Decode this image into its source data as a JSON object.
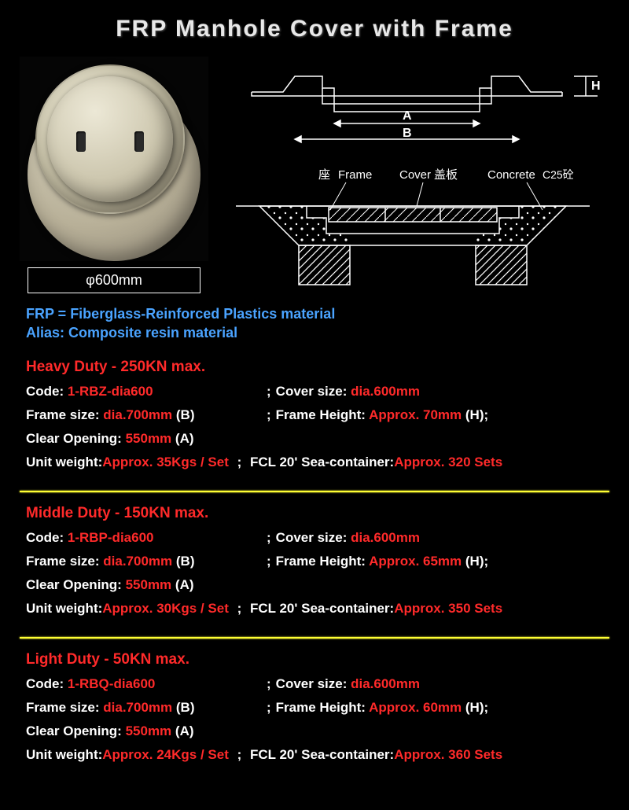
{
  "title": "FRP Manhole Cover with Frame",
  "diameter_label": "φ600mm",
  "diagram": {
    "top_labels": {
      "H": "H",
      "A": "A",
      "B": "B"
    },
    "section_labels": {
      "frame_cn": "座",
      "frame_en": "Frame",
      "cover_en": "Cover",
      "cover_cn": "盖板",
      "concrete_en": "Concrete",
      "concrete_cn": "C25砼"
    },
    "colors": {
      "stroke": "#ffffff",
      "hatch": "#ffffff",
      "bg": "#000000"
    }
  },
  "material": {
    "line1": "FRP = Fiberglass-Reinforced Plastics material",
    "line2": "Alias: Composite resin material"
  },
  "divider_color": "#ffff33",
  "sections": [
    {
      "title": "Heavy Duty - 250KN max.",
      "code": {
        "label": "Code: ",
        "value": "1-RBZ-dia600"
      },
      "cover_size": {
        "label": "Cover size: ",
        "value": "dia.600mm"
      },
      "frame_size": {
        "label": "Frame size: ",
        "value": "dia.700mm",
        "suffix": " (B)"
      },
      "frame_height": {
        "label": "Frame Height: ",
        "value": "Approx. 70mm",
        "suffix": " (H);"
      },
      "clear_opening": {
        "label": "Clear Opening: ",
        "value": "550mm",
        "suffix": " (A)"
      },
      "unit_weight": {
        "label": "Unit weight: ",
        "value": "Approx. 35Kgs / Set"
      },
      "fcl": {
        "label": "FCL 20' Sea-container: ",
        "value": "Approx. 320 Sets"
      }
    },
    {
      "title": "Middle Duty - 150KN max.",
      "code": {
        "label": "Code: ",
        "value": "1-RBP-dia600"
      },
      "cover_size": {
        "label": "Cover size: ",
        "value": "dia.600mm"
      },
      "frame_size": {
        "label": "Frame size: ",
        "value": "dia.700mm",
        "suffix": " (B)"
      },
      "frame_height": {
        "label": "Frame Height: ",
        "value": "Approx. 65mm",
        "suffix": " (H);"
      },
      "clear_opening": {
        "label": "Clear Opening: ",
        "value": "550mm",
        "suffix": " (A)"
      },
      "unit_weight": {
        "label": "Unit weight: ",
        "value": "Approx. 30Kgs / Set"
      },
      "fcl": {
        "label": "FCL 20' Sea-container: ",
        "value": "Approx. 350 Sets"
      }
    },
    {
      "title": "Light Duty - 50KN max.",
      "code": {
        "label": "Code: ",
        "value": "1-RBQ-dia600"
      },
      "cover_size": {
        "label": "Cover size: ",
        "value": "dia.600mm"
      },
      "frame_size": {
        "label": "Frame size: ",
        "value": "dia.700mm",
        "suffix": " (B)"
      },
      "frame_height": {
        "label": "Frame Height: ",
        "value": "Approx. 60mm",
        "suffix": " (H);"
      },
      "clear_opening": {
        "label": "Clear Opening: ",
        "value": "550mm",
        "suffix": " (A)"
      },
      "unit_weight": {
        "label": "Unit weight: ",
        "value": "Approx. 24Kgs / Set"
      },
      "fcl": {
        "label": "FCL 20' Sea-container: ",
        "value": "Approx. 360 Sets"
      }
    }
  ]
}
